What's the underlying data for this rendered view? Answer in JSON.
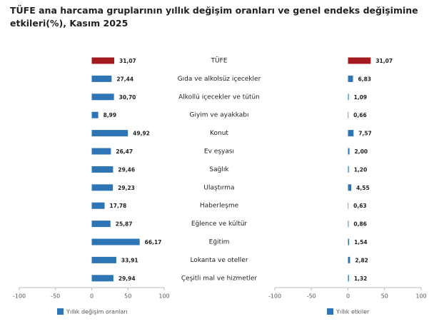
{
  "title": "TÜFE ana harcama gruplarının yıllık değişim oranları ve genel endeks değişimine etkileri(%), Kasım 2025",
  "chart_data": [
    {
      "type": "bar",
      "orientation": "horizontal",
      "categories": [
        "TÜFE",
        "Gıda ve alkolsüz içecekler",
        "Alkollü içecekler ve tütün",
        "Giyim ve ayakkabı",
        "Konut",
        "Ev eşyası",
        "Sağlık",
        "Ulaştırma",
        "Haberleşme",
        "Eğlence ve kültür",
        "Eğitim",
        "Lokanta ve oteller",
        "Çeşitli mal ve hizmetler"
      ],
      "series": [
        {
          "name": "Yıllık değişim oranları",
          "color": "#2e75b6",
          "point_colors": [
            "#a31b1f",
            "#2e75b6",
            "#2e75b6",
            "#2e75b6",
            "#2e75b6",
            "#2e75b6",
            "#2e75b6",
            "#2e75b6",
            "#2e75b6",
            "#2e75b6",
            "#2e75b6",
            "#2e75b6",
            "#2e75b6"
          ],
          "values": [
            31.07,
            27.44,
            30.7,
            8.99,
            49.92,
            26.47,
            29.46,
            29.23,
            17.78,
            25.87,
            66.17,
            33.91,
            29.94
          ],
          "value_labels": [
            "31,07",
            "27,44",
            "30,70",
            "8,99",
            "49,92",
            "26,47",
            "29,46",
            "29,23",
            "17,78",
            "25,87",
            "66,17",
            "33,91",
            "29,94"
          ]
        }
      ],
      "xlim": [
        -100,
        100
      ],
      "xticks": [
        -100,
        -50,
        0,
        50,
        100
      ]
    },
    {
      "type": "bar",
      "orientation": "horizontal",
      "series": [
        {
          "name": "Yıllık etkiler",
          "color": "#2e75b6",
          "point_colors": [
            "#a31b1f",
            "#2e75b6",
            "#2e75b6",
            "#2e75b6",
            "#2e75b6",
            "#2e75b6",
            "#2e75b6",
            "#2e75b6",
            "#2e75b6",
            "#2e75b6",
            "#2e75b6",
            "#2e75b6",
            "#2e75b6"
          ],
          "values": [
            31.07,
            6.83,
            1.09,
            0.66,
            7.57,
            2.0,
            1.2,
            4.55,
            0.63,
            0.86,
            1.54,
            2.82,
            1.32
          ],
          "value_labels": [
            "31,07",
            "6,83",
            "1,09",
            "0,66",
            "7,57",
            "2,00",
            "1,20",
            "4,55",
            "0,63",
            "0,86",
            "1,54",
            "2,82",
            "1,32"
          ]
        }
      ],
      "xlim": [
        -100,
        100
      ],
      "xticks": [
        -100,
        -50,
        0,
        50,
        100
      ]
    }
  ]
}
